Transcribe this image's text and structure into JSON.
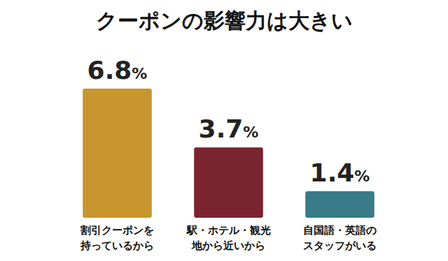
{
  "chart_data": {
    "type": "bar",
    "title": "クーポンの影響力は大きい",
    "categories": [
      "割引クーポンを\n持っているから",
      "駅・ホテル・観光\n地から近いから",
      "自国語・英語の\nスタッフがいる"
    ],
    "values": [
      6.8,
      3.7,
      1.4
    ],
    "value_labels": [
      "6.8%",
      "3.7%",
      "1.4%"
    ],
    "colors": [
      "#C8952E",
      "#7A2430",
      "#3A7B88"
    ],
    "ylim": [
      0,
      6.8
    ],
    "data_labels": true,
    "tick_labels": false,
    "grid": false
  }
}
